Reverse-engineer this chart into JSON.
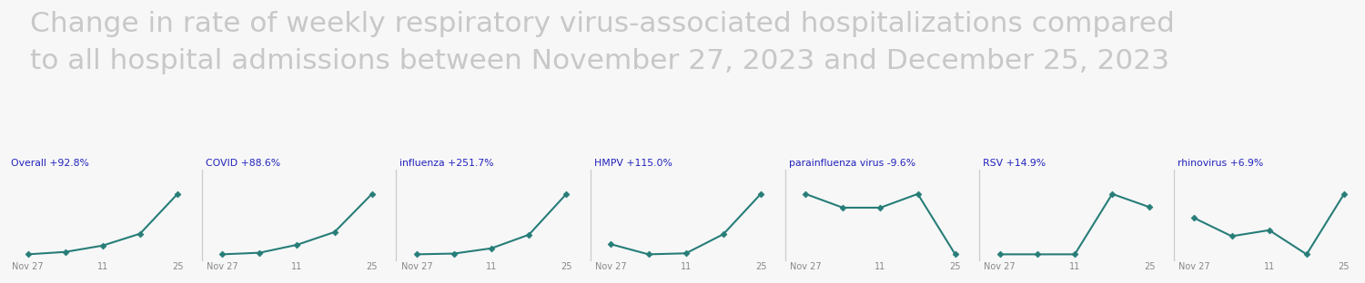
{
  "title_line1": "Change in rate of weekly respiratory virus-associated hospitalizations compared",
  "title_line2": "to all hospital admissions between November 27, 2023 and December 25, 2023",
  "background_color": "#f7f7f8",
  "line_color": "#277d78",
  "label_color": "#2222bb",
  "title_color": "#c8c8c8",
  "tick_color": "#888888",
  "separator_color": "#cccccc",
  "x_tick_labels": [
    "Nov 27",
    "11",
    "25"
  ],
  "x_tick_positions": [
    0,
    2,
    4
  ],
  "charts": [
    {
      "label": "Overall +92.8%",
      "y": [
        1.0,
        1.15,
        1.55,
        2.3,
        4.8
      ]
    },
    {
      "label": "COVID +88.6%",
      "y": [
        1.0,
        1.1,
        1.6,
        2.4,
        4.8
      ]
    },
    {
      "label": "influenza +251.7%",
      "y": [
        1.0,
        1.05,
        1.4,
        2.3,
        5.0
      ]
    },
    {
      "label": "HMPV +115.0%",
      "y": [
        1.5,
        1.0,
        1.05,
        2.0,
        4.0
      ]
    },
    {
      "label": "parainfluenza virus -9.6%",
      "y": [
        3.2,
        2.7,
        2.7,
        3.2,
        1.0
      ]
    },
    {
      "label": "RSV +14.9%",
      "y": [
        1.0,
        1.0,
        1.0,
        4.2,
        3.5
      ]
    },
    {
      "label": "rhinovirus +6.9%",
      "y": [
        2.8,
        1.9,
        2.2,
        1.0,
        4.0
      ]
    }
  ]
}
